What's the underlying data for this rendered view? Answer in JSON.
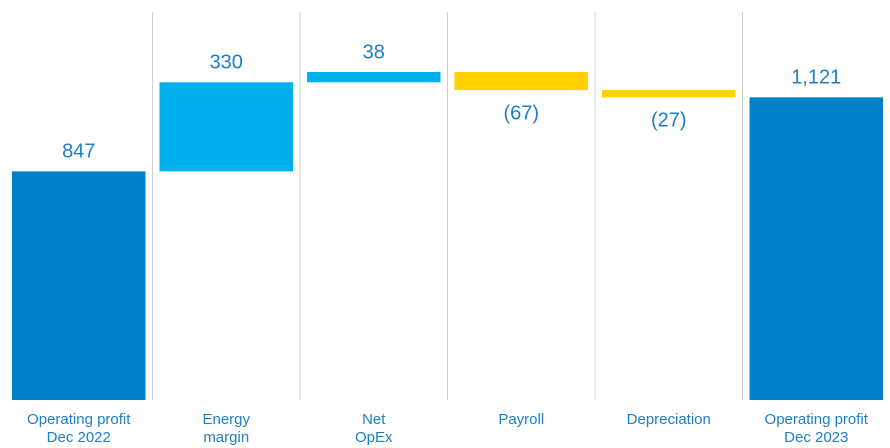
{
  "chart_data": {
    "type": "waterfall",
    "categories": [
      [
        "Operating profit",
        "Dec 2022"
      ],
      [
        "Energy",
        "margin"
      ],
      [
        "Net",
        "OpEx"
      ],
      [
        "Payroll"
      ],
      [
        "Depreciation"
      ],
      [
        "Operating profit",
        "Dec 2023"
      ]
    ],
    "values": [
      847,
      330,
      38,
      -67,
      -27,
      1121
    ],
    "value_labels": [
      "847",
      "330",
      "38",
      "(67)",
      "(27)",
      "1,121"
    ],
    "colors": [
      "#0080c9",
      "#00b0ec",
      "#00b0ec",
      "#ffd200",
      "#ffd200",
      "#0080c9"
    ]
  }
}
